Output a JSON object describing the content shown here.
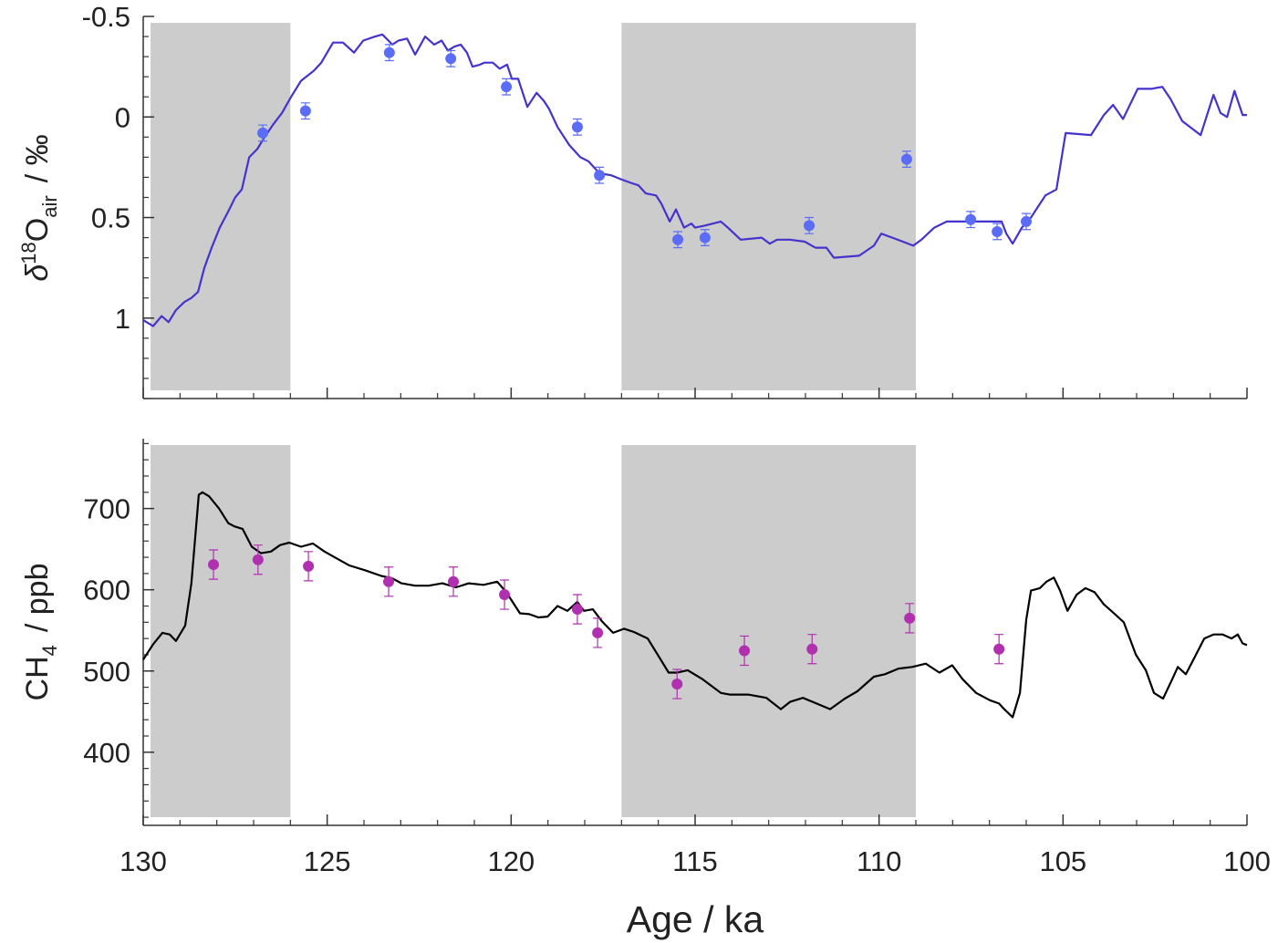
{
  "chart_data": [
    {
      "type": "line",
      "ylabel": {
        "symbol": "δ",
        "sup": "18",
        "base": "O",
        "sub": "air",
        "unit": "/ ‰"
      },
      "xlim": [
        130,
        100
      ],
      "xticks": [
        130,
        125,
        120,
        115,
        110,
        105,
        100
      ],
      "xtick_labels": false,
      "ylim": [
        1.4,
        -0.5
      ],
      "yticks": [
        -0.5,
        0,
        0.5,
        1
      ],
      "minor_divisions": 5,
      "shaded_regions": [
        [
          129.8,
          126.0
        ],
        [
          117.0,
          109.0
        ]
      ],
      "shade_color": "#cccccc",
      "series": [
        {
          "style": "line",
          "color": "#4433cc",
          "x": [
            130.0,
            129.73,
            129.5,
            129.31,
            129.11,
            128.88,
            128.69,
            128.51,
            128.34,
            128.14,
            127.92,
            127.69,
            127.5,
            127.32,
            127.12,
            126.9,
            126.7,
            126.48,
            126.23,
            125.98,
            125.71,
            125.36,
            125.16,
            124.84,
            124.57,
            124.27,
            124.02,
            123.7,
            123.5,
            123.23,
            123.06,
            122.83,
            122.61,
            122.34,
            122.09,
            121.89,
            121.72,
            121.54,
            121.37,
            121.2,
            121.05,
            120.85,
            120.73,
            120.5,
            120.31,
            120.11,
            119.98,
            119.81,
            119.56,
            119.31,
            119.11,
            118.97,
            118.74,
            118.42,
            118.12,
            117.9,
            117.6,
            117.28,
            117.01,
            116.71,
            116.54,
            116.34,
            116.06,
            115.92,
            115.69,
            115.52,
            115.3,
            115.1,
            115.0,
            114.73,
            114.3,
            114.11,
            113.76,
            113.19,
            112.97,
            112.77,
            112.42,
            112.02,
            111.73,
            111.43,
            111.23,
            110.54,
            110.14,
            109.94,
            109.64,
            109.35,
            109.07,
            108.85,
            108.5,
            108.16,
            106.67,
            106.54,
            106.37,
            106.12,
            105.87,
            105.48,
            105.18,
            104.93,
            104.24,
            103.89,
            103.64,
            103.37,
            102.97,
            102.6,
            102.3,
            102.08,
            101.76,
            101.26,
            100.91,
            100.72,
            100.54,
            100.34,
            100.12,
            100.0
          ],
          "values": [
            1.01,
            1.04,
            0.99,
            1.02,
            0.96,
            0.92,
            0.9,
            0.87,
            0.75,
            0.65,
            0.55,
            0.47,
            0.4,
            0.36,
            0.2,
            0.16,
            0.1,
            0.04,
            -0.02,
            -0.1,
            -0.18,
            -0.23,
            -0.27,
            -0.37,
            -0.37,
            -0.32,
            -0.38,
            -0.4,
            -0.41,
            -0.36,
            -0.38,
            -0.39,
            -0.31,
            -0.4,
            -0.36,
            -0.38,
            -0.33,
            -0.35,
            -0.36,
            -0.32,
            -0.25,
            -0.26,
            -0.27,
            -0.27,
            -0.24,
            -0.26,
            -0.19,
            -0.19,
            -0.05,
            -0.12,
            -0.08,
            -0.04,
            0.05,
            0.14,
            0.2,
            0.22,
            0.28,
            0.29,
            0.31,
            0.33,
            0.34,
            0.38,
            0.39,
            0.43,
            0.52,
            0.46,
            0.55,
            0.53,
            0.55,
            0.54,
            0.52,
            0.55,
            0.61,
            0.6,
            0.63,
            0.61,
            0.61,
            0.62,
            0.65,
            0.65,
            0.7,
            0.69,
            0.64,
            0.58,
            0.6,
            0.62,
            0.64,
            0.61,
            0.55,
            0.52,
            0.52,
            0.58,
            0.63,
            0.55,
            0.5,
            0.39,
            0.36,
            0.08,
            0.09,
            -0.01,
            -0.06,
            0.01,
            -0.14,
            -0.14,
            -0.15,
            -0.09,
            0.02,
            0.09,
            -0.11,
            -0.02,
            0,
            -0.13,
            -0.01,
            -0.01
          ]
        },
        {
          "style": "points",
          "color": "#5b6cf7",
          "x": [
            126.75,
            125.59,
            123.31,
            121.64,
            120.13,
            118.2,
            117.6,
            115.47,
            114.73,
            111.9,
            109.25,
            107.51,
            106.79,
            106.0
          ],
          "values": [
            0.08,
            -0.03,
            -0.32,
            -0.29,
            -0.15,
            0.05,
            0.29,
            0.61,
            0.6,
            0.54,
            0.21,
            0.51,
            0.57,
            0.52
          ],
          "errors": [
            0.04,
            0.04,
            0.04,
            0.04,
            0.04,
            0.04,
            0.04,
            0.04,
            0.04,
            0.04,
            0.04,
            0.04,
            0.04,
            0.04
          ]
        }
      ]
    },
    {
      "type": "line",
      "ylabel": {
        "base": "CH",
        "sub": "4",
        "unit": "/ ppb"
      },
      "xlabel": "Age / ka",
      "xlim": [
        130,
        100
      ],
      "xticks": [
        130,
        125,
        120,
        115,
        110,
        105,
        100
      ],
      "ylim": [
        310,
        786
      ],
      "yticks": [
        400,
        500,
        600,
        700
      ],
      "minor_divisions": 5,
      "shaded_regions": [
        [
          129.8,
          126.0
        ],
        [
          117.0,
          109.0
        ]
      ],
      "shade_color": "#cccccc",
      "series": [
        {
          "style": "line",
          "color": "#000000",
          "x": [
            130.0,
            129.73,
            129.48,
            129.28,
            129.11,
            128.86,
            128.69,
            128.49,
            128.39,
            128.21,
            127.94,
            127.69,
            127.52,
            127.3,
            127.05,
            126.8,
            126.53,
            126.28,
            126.03,
            125.71,
            125.39,
            125.07,
            124.72,
            124.4,
            123.97,
            123.53,
            123.23,
            122.98,
            122.61,
            122.24,
            121.87,
            121.5,
            121.15,
            120.75,
            120.38,
            120.13,
            119.96,
            119.76,
            119.51,
            119.26,
            119.01,
            118.74,
            118.47,
            118.2,
            118.02,
            117.78,
            117.53,
            117.23,
            116.93,
            116.66,
            116.29,
            115.99,
            115.72,
            115.49,
            115.2,
            114.8,
            114.3,
            114.06,
            113.56,
            113.06,
            112.67,
            112.42,
            112.07,
            111.7,
            111.33,
            110.93,
            110.59,
            110.14,
            109.84,
            109.47,
            109.1,
            108.73,
            108.36,
            108.01,
            107.73,
            107.36,
            106.99,
            106.74,
            106.62,
            106.37,
            106.17,
            106.0,
            105.87,
            105.63,
            105.45,
            105.25,
            105.08,
            104.88,
            104.63,
            104.39,
            104.14,
            103.89,
            103.64,
            103.35,
            103.02,
            102.75,
            102.53,
            102.28,
            102.03,
            101.88,
            101.66,
            101.41,
            101.16,
            100.91,
            100.66,
            100.42,
            100.25,
            100.12,
            100.0
          ],
          "values": [
            514,
            533,
            547,
            545,
            537,
            556,
            608,
            717,
            720,
            715,
            700,
            682,
            678,
            675,
            653,
            645,
            647,
            655,
            658,
            653,
            657,
            647,
            638,
            630,
            624,
            617,
            614,
            608,
            605,
            605,
            608,
            603,
            608,
            606,
            610,
            597,
            585,
            571,
            570,
            566,
            567,
            580,
            574,
            585,
            574,
            576,
            561,
            547,
            552,
            548,
            540,
            518,
            498,
            498,
            501,
            490,
            473,
            471,
            471,
            467,
            453,
            462,
            467,
            460,
            453,
            466,
            475,
            493,
            496,
            503,
            505,
            509,
            498,
            507,
            490,
            473,
            464,
            460,
            454,
            443,
            473,
            563,
            599,
            602,
            610,
            615,
            599,
            574,
            594,
            602,
            597,
            582,
            572,
            560,
            520,
            501,
            473,
            466,
            490,
            505,
            496,
            518,
            540,
            545,
            545,
            540,
            545,
            534,
            532
          ]
        },
        {
          "style": "points",
          "color": "#b030b0",
          "x": [
            128.09,
            126.88,
            125.51,
            123.33,
            121.57,
            120.18,
            118.2,
            117.65,
            115.49,
            113.66,
            111.82,
            109.17,
            106.74
          ],
          "values": [
            631,
            637,
            629,
            610,
            610,
            594,
            576,
            547,
            484,
            525,
            527,
            565,
            527
          ],
          "errors": [
            18,
            18,
            18,
            18,
            18,
            18,
            18,
            18,
            18,
            18,
            18,
            18,
            18
          ]
        }
      ]
    }
  ]
}
